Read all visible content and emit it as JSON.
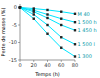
{
  "chart_data": {
    "type": "line",
    "xlabel": "Temps (h)",
    "ylabel": "Perte de masse (%)",
    "x": [
      0,
      20,
      40,
      60,
      80
    ],
    "series": [
      {
        "name": "M 40",
        "color": "#00e5ff",
        "marker": "square",
        "values": [
          0,
          -0.3,
          -0.7,
          -1.2,
          -1.8
        ]
      },
      {
        "name": "1 500 h",
        "color": "#00e5ff",
        "marker": "square",
        "values": [
          0,
          -0.8,
          -2.0,
          -3.2,
          -4.2
        ]
      },
      {
        "name": "1 450 h",
        "color": "#00e5ff",
        "marker": "square",
        "values": [
          0,
          -1.2,
          -3.0,
          -5.0,
          -6.5
        ]
      },
      {
        "name": "1 500 l",
        "color": "#00e5ff",
        "marker": "square",
        "values": [
          0,
          -2.0,
          -5.0,
          -8.5,
          -10.5
        ]
      },
      {
        "name": "1 300",
        "color": "#00e5ff",
        "marker": "square",
        "values": [
          0,
          -3.2,
          -7.5,
          -11.5,
          -14.0
        ]
      }
    ],
    "xlim": [
      0,
      80
    ],
    "ylim": [
      -15,
      1
    ],
    "xticks": [
      0,
      20,
      40,
      60,
      80
    ],
    "yticks": [
      0,
      -5,
      -10,
      -15
    ]
  }
}
